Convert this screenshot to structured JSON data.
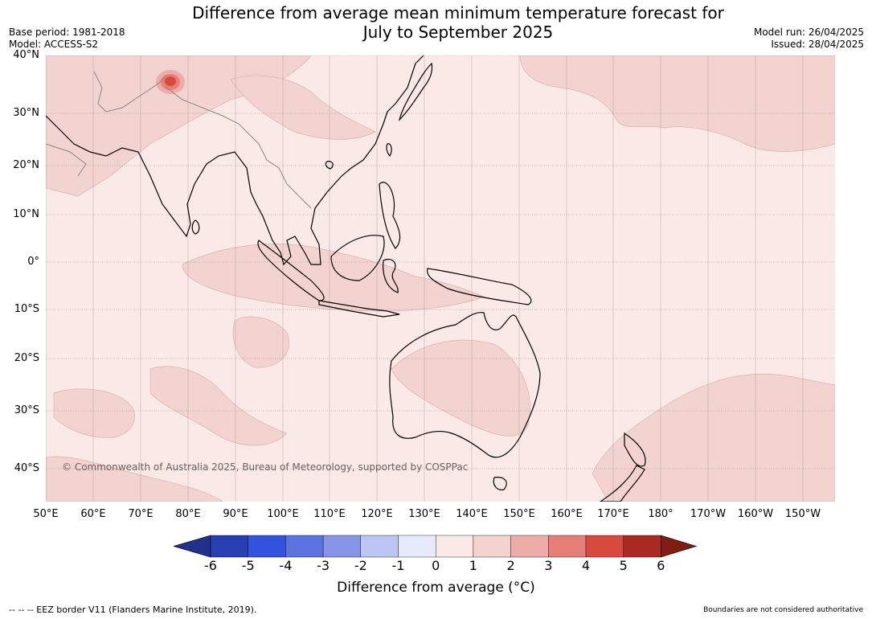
{
  "title": {
    "line1": "Difference from average mean minimum temperature forecast for",
    "line2": "July to September 2025"
  },
  "meta_left": {
    "base_period": "Base period: 1981-2018",
    "model": "Model: ACCESS-S2"
  },
  "meta_right": {
    "model_run": "Model run: 26/04/2025",
    "issued": "Issued: 28/04/2025"
  },
  "map": {
    "lat_labels": [
      "40°N",
      "30°N",
      "20°N",
      "10°N",
      "0°",
      "10°S",
      "20°S",
      "30°S",
      "40°S"
    ],
    "lon_labels": [
      "50°E",
      "60°E",
      "70°E",
      "80°E",
      "90°E",
      "100°E",
      "110°E",
      "120°E",
      "130°E",
      "140°E",
      "150°E",
      "160°E",
      "170°E",
      "180°",
      "170°W",
      "160°W",
      "150°W"
    ],
    "copyright": "© Commonwealth of Australia 2025, Bureau of Meteorology, supported by COSPPac",
    "colors": {
      "ocean_0_1": "#fbe9e7",
      "anomaly_1_2": "#f3d3d0",
      "anomaly_2_3": "#edaca8",
      "anomaly_3_4": "#e57f78",
      "anomaly_4_5": "#d94a3e",
      "land_outline": "#000000",
      "border": "#888888"
    }
  },
  "colorbar": {
    "ticks": [
      "-6",
      "-5",
      "-4",
      "-3",
      "-2",
      "-1",
      "0",
      "1",
      "2",
      "3",
      "4",
      "5",
      "6"
    ],
    "colors": [
      "#22318a",
      "#283fb4",
      "#3353df",
      "#5b72e0",
      "#8794e8",
      "#bcc5f3",
      "#e7eafb",
      "#fbe9e7",
      "#f3d3d0",
      "#edaca8",
      "#e57f78",
      "#d94a3e",
      "#a82a22",
      "#7f1c14"
    ],
    "label": "Difference from average (°C)"
  },
  "footer": {
    "left": "--  --  -- EEZ border V11 (Flanders Marine Institute, 2019).",
    "right": "Boundaries are not considered authoritative"
  }
}
